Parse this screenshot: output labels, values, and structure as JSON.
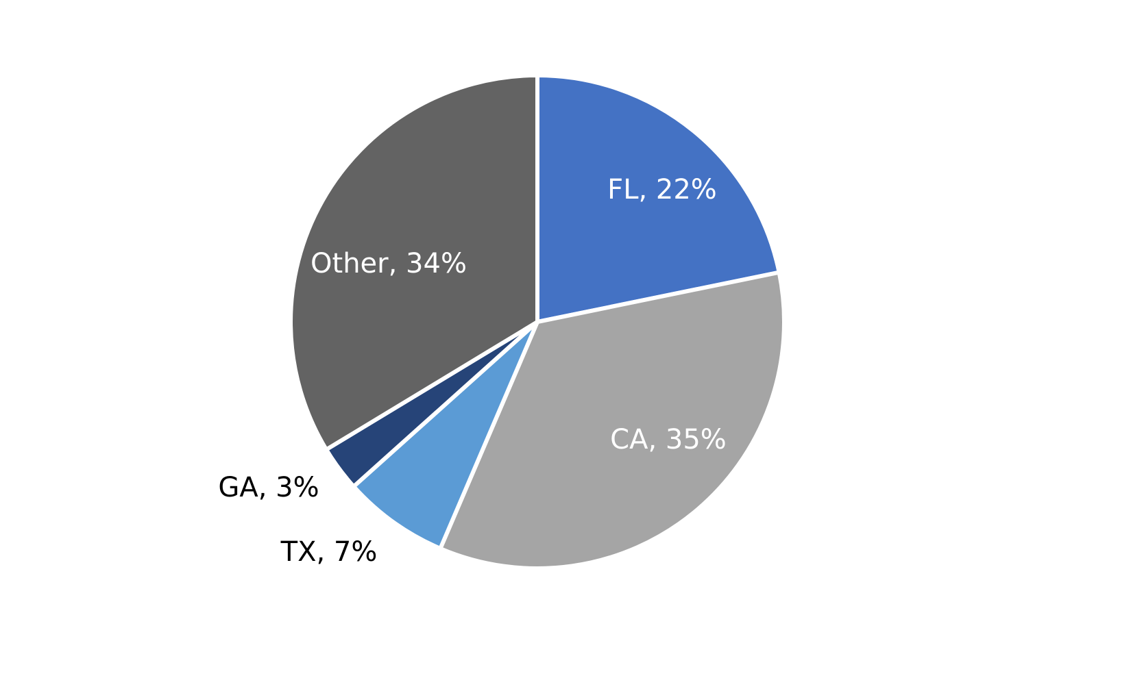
{
  "chart_data": {
    "type": "pie",
    "title": "",
    "start_angle": "12 o'clock, clockwise",
    "slices": [
      {
        "label": "FL",
        "value": 22,
        "color": "#4472C4",
        "text": "FL, 22%",
        "text_color": "#ffffff"
      },
      {
        "label": "CA",
        "value": 35,
        "color": "#A5A5A5",
        "text": "CA, 35%",
        "text_color": "#ffffff"
      },
      {
        "label": "TX",
        "value": 7,
        "color": "#5B9BD5",
        "text": "TX, 7%",
        "text_color": "#000000"
      },
      {
        "label": "GA",
        "value": 3,
        "color": "#264478",
        "text": "GA, 3%",
        "text_color": "#000000"
      },
      {
        "label": "Other",
        "value": 34,
        "color": "#636363",
        "text": "Other, 34%",
        "text_color": "#ffffff"
      }
    ],
    "categories": [
      "FL",
      "CA",
      "TX",
      "GA",
      "Other"
    ],
    "values": [
      22,
      35,
      7,
      3,
      34
    ],
    "unit": "%",
    "legend": "none (data labels on slices)"
  }
}
